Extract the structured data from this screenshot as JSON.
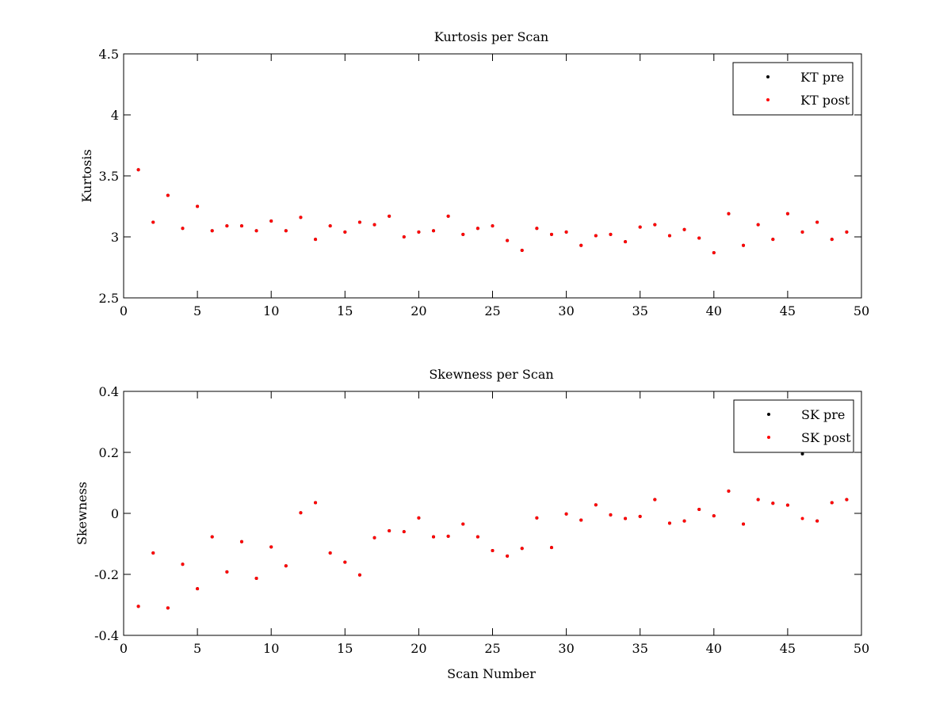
{
  "chart_data": [
    {
      "type": "scatter",
      "title": "Kurtosis per Scan",
      "xlabel": "",
      "ylabel": "Kurtosis",
      "xlim": [
        0,
        50
      ],
      "ylim": [
        2.5,
        4.5
      ],
      "xticks": [
        "0",
        "5",
        "10",
        "15",
        "20",
        "25",
        "30",
        "35",
        "40",
        "45",
        "50"
      ],
      "yticks": [
        "2.5",
        "3",
        "3.5",
        "4",
        "4.5"
      ],
      "legend_position": "top-right",
      "grid": false,
      "x": [
        1,
        2,
        3,
        4,
        5,
        6,
        7,
        8,
        9,
        10,
        11,
        12,
        13,
        14,
        15,
        16,
        17,
        18,
        19,
        20,
        21,
        22,
        23,
        24,
        25,
        26,
        27,
        28,
        29,
        30,
        31,
        32,
        33,
        34,
        35,
        36,
        37,
        38,
        39,
        40,
        41,
        42,
        43,
        44,
        45,
        46,
        47,
        48,
        49
      ],
      "series": [
        {
          "name": "KT pre",
          "color": "#000000",
          "values": [
            3.55,
            3.12,
            3.34,
            3.07,
            3.25,
            3.05,
            3.09,
            3.09,
            3.05,
            3.13,
            3.05,
            3.16,
            2.98,
            3.09,
            3.04,
            3.12,
            3.1,
            3.17,
            3.0,
            3.04,
            3.05,
            3.17,
            3.02,
            3.07,
            3.09,
            2.97,
            2.89,
            3.07,
            3.02,
            3.04,
            2.93,
            3.01,
            3.02,
            2.96,
            3.08,
            3.1,
            3.01,
            3.06,
            2.99,
            2.87,
            3.19,
            2.93,
            3.1,
            2.98,
            3.19,
            3.04,
            3.12,
            2.98,
            3.04
          ]
        },
        {
          "name": "KT post",
          "color": "#ff0000",
          "values": [
            3.55,
            3.12,
            3.34,
            3.07,
            3.25,
            3.05,
            3.09,
            3.09,
            3.05,
            3.13,
            3.05,
            3.16,
            2.98,
            3.09,
            3.04,
            3.12,
            3.1,
            3.17,
            3.0,
            3.04,
            3.05,
            3.17,
            3.02,
            3.07,
            3.09,
            2.97,
            2.89,
            3.07,
            3.02,
            3.04,
            2.93,
            3.01,
            3.02,
            2.96,
            3.08,
            3.1,
            3.01,
            3.06,
            2.99,
            2.87,
            3.19,
            2.93,
            3.1,
            2.98,
            3.19,
            3.04,
            3.12,
            2.98,
            3.04
          ]
        }
      ]
    },
    {
      "type": "scatter",
      "title": "Skewness per Scan",
      "xlabel": "Scan Number",
      "ylabel": "Skewness",
      "xlim": [
        0,
        50
      ],
      "ylim": [
        -0.4,
        0.4
      ],
      "xticks": [
        "0",
        "5",
        "10",
        "15",
        "20",
        "25",
        "30",
        "35",
        "40",
        "45",
        "50"
      ],
      "yticks": [
        "-0.4",
        "-0.2",
        "0",
        "0.2",
        "0.4"
      ],
      "legend_position": "top-right",
      "grid": false,
      "x": [
        1,
        2,
        3,
        4,
        5,
        6,
        7,
        8,
        9,
        10,
        11,
        12,
        13,
        14,
        15,
        16,
        17,
        18,
        19,
        20,
        21,
        22,
        23,
        24,
        25,
        26,
        27,
        28,
        29,
        30,
        31,
        32,
        33,
        34,
        35,
        36,
        37,
        38,
        39,
        40,
        41,
        42,
        43,
        44,
        45,
        46,
        47,
        48,
        49
      ],
      "series": [
        {
          "name": "SK pre",
          "color": "#000000",
          "values": [
            -0.305,
            -0.13,
            -0.31,
            -0.167,
            -0.247,
            -0.077,
            -0.192,
            -0.093,
            -0.213,
            -0.11,
            -0.172,
            0.002,
            0.035,
            -0.13,
            -0.16,
            -0.202,
            -0.08,
            -0.057,
            -0.06,
            -0.015,
            -0.077,
            -0.075,
            -0.035,
            -0.077,
            -0.122,
            -0.14,
            -0.115,
            -0.015,
            -0.112,
            -0.002,
            -0.022,
            0.028,
            -0.005,
            -0.017,
            -0.01,
            0.045,
            -0.032,
            -0.025,
            0.013,
            -0.008,
            0.073,
            -0.035,
            0.045,
            0.033,
            0.027,
            0.195,
            -0.025,
            0.035,
            0.045
          ]
        },
        {
          "name": "SK post",
          "color": "#ff0000",
          "values": [
            -0.305,
            -0.13,
            -0.31,
            -0.167,
            -0.247,
            -0.077,
            -0.192,
            -0.093,
            -0.213,
            -0.11,
            -0.172,
            0.002,
            0.035,
            -0.13,
            -0.16,
            -0.202,
            -0.08,
            -0.057,
            -0.06,
            -0.015,
            -0.077,
            -0.075,
            -0.035,
            -0.077,
            -0.122,
            -0.14,
            -0.115,
            -0.015,
            -0.112,
            -0.002,
            -0.022,
            0.028,
            -0.005,
            -0.017,
            -0.01,
            0.045,
            -0.032,
            -0.025,
            0.013,
            -0.008,
            0.073,
            -0.035,
            0.045,
            0.033,
            0.027,
            -0.017,
            -0.025,
            0.035,
            0.045
          ]
        }
      ]
    }
  ]
}
